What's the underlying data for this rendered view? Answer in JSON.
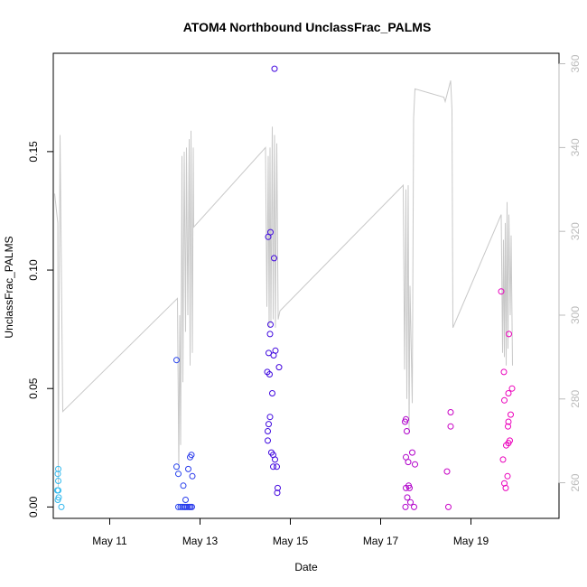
{
  "chart_data": {
    "type": "scatter",
    "title": "ATOM4 Northbound UnclassFrac_PALMS",
    "xlabel": "Date",
    "ylabel": "UnclassFrac_PALMS",
    "x_unit": "day of May",
    "xlim": [
      9.75,
      20.95
    ],
    "ylim": [
      -0.0048,
      0.1915
    ],
    "y2lim": [
      251.5,
      362.5
    ],
    "x_ticks": [
      11,
      13,
      15,
      17,
      19
    ],
    "x_tick_labels": [
      "May 11",
      "May 13",
      "May 15",
      "May 17",
      "May 19"
    ],
    "y_ticks": [
      0.0,
      0.05,
      0.1,
      0.15
    ],
    "y_tick_labels": [
      "0.00",
      "0.05",
      "0.10",
      "0.15"
    ],
    "y2_ticks": [
      260,
      280,
      300,
      320,
      340,
      360
    ],
    "y2_tick_labels": [
      "260",
      "280",
      "300",
      "320",
      "340",
      "360"
    ],
    "grid": false,
    "legend": "none",
    "colors": {
      "secondary_line": "#c8c8c8",
      "right_axis": "#bbbbbb",
      "frame": "#000000"
    },
    "series": [
      {
        "type": "scatter",
        "marker": "open-circle",
        "color_gradient": [
          "#33bbee",
          "#2244ee",
          "#4400dd",
          "#aa00cc",
          "#ee00bb"
        ],
        "points": [
          [
            9.86,
            0.016
          ],
          [
            9.85,
            0.014
          ],
          [
            9.86,
            0.011
          ],
          [
            9.84,
            0.007
          ],
          [
            9.86,
            0.007
          ],
          [
            9.87,
            0.004
          ],
          [
            9.85,
            0.003
          ],
          [
            9.93,
            0.0
          ],
          [
            12.48,
            0.062
          ],
          [
            12.48,
            0.017
          ],
          [
            12.81,
            0.022
          ],
          [
            12.78,
            0.021
          ],
          [
            12.52,
            0.014
          ],
          [
            12.74,
            0.016
          ],
          [
            12.83,
            0.013
          ],
          [
            12.63,
            0.009
          ],
          [
            12.68,
            0.003
          ],
          [
            12.52,
            0.0
          ],
          [
            12.57,
            0.0
          ],
          [
            12.61,
            0.0
          ],
          [
            12.65,
            0.0
          ],
          [
            12.68,
            0.0
          ],
          [
            12.72,
            0.0
          ],
          [
            12.76,
            0.0
          ],
          [
            12.79,
            0.0
          ],
          [
            12.82,
            0.0
          ],
          [
            14.65,
            0.185
          ],
          [
            14.56,
            0.116
          ],
          [
            14.51,
            0.114
          ],
          [
            14.64,
            0.105
          ],
          [
            14.56,
            0.077
          ],
          [
            14.55,
            0.073
          ],
          [
            14.52,
            0.065
          ],
          [
            14.67,
            0.066
          ],
          [
            14.63,
            0.064
          ],
          [
            14.75,
            0.059
          ],
          [
            14.49,
            0.057
          ],
          [
            14.54,
            0.056
          ],
          [
            14.6,
            0.048
          ],
          [
            14.55,
            0.038
          ],
          [
            14.52,
            0.035
          ],
          [
            14.5,
            0.032
          ],
          [
            14.5,
            0.028
          ],
          [
            14.58,
            0.023
          ],
          [
            14.62,
            0.022
          ],
          [
            14.66,
            0.02
          ],
          [
            14.62,
            0.017
          ],
          [
            14.7,
            0.017
          ],
          [
            14.72,
            0.008
          ],
          [
            14.71,
            0.006
          ],
          [
            17.56,
            0.037
          ],
          [
            17.54,
            0.036
          ],
          [
            17.58,
            0.032
          ],
          [
            17.7,
            0.023
          ],
          [
            17.56,
            0.021
          ],
          [
            17.61,
            0.019
          ],
          [
            17.76,
            0.018
          ],
          [
            17.62,
            0.009
          ],
          [
            17.56,
            0.008
          ],
          [
            17.64,
            0.008
          ],
          [
            17.59,
            0.004
          ],
          [
            17.66,
            0.002
          ],
          [
            17.55,
            0.0
          ],
          [
            17.74,
            0.0
          ],
          [
            18.55,
            0.04
          ],
          [
            18.55,
            0.034
          ],
          [
            18.47,
            0.015
          ],
          [
            18.5,
            0.0
          ],
          [
            19.67,
            0.091
          ],
          [
            19.84,
            0.073
          ],
          [
            19.73,
            0.057
          ],
          [
            19.91,
            0.05
          ],
          [
            19.83,
            0.048
          ],
          [
            19.74,
            0.045
          ],
          [
            19.88,
            0.039
          ],
          [
            19.83,
            0.036
          ],
          [
            19.82,
            0.034
          ],
          [
            19.86,
            0.028
          ],
          [
            19.83,
            0.027
          ],
          [
            19.78,
            0.026
          ],
          [
            19.71,
            0.02
          ],
          [
            19.81,
            0.013
          ],
          [
            19.74,
            0.01
          ],
          [
            19.77,
            0.008
          ]
        ]
      },
      {
        "name": "",
        "type": "line",
        "axis": "right",
        "points": [
          [
            9.78,
            329
          ],
          [
            9.85,
            322
          ],
          [
            9.86,
            259
          ],
          [
            9.9,
            343
          ],
          [
            9.96,
            277
          ],
          [
            12.5,
            304
          ],
          [
            12.53,
            263
          ],
          [
            12.55,
            300
          ],
          [
            12.57,
            269
          ],
          [
            12.6,
            338
          ],
          [
            12.62,
            284
          ],
          [
            12.65,
            339
          ],
          [
            12.68,
            296
          ],
          [
            12.7,
            340
          ],
          [
            12.73,
            300
          ],
          [
            12.76,
            342
          ],
          [
            12.78,
            288
          ],
          [
            12.8,
            344
          ],
          [
            12.83,
            291
          ],
          [
            12.85,
            340
          ],
          [
            12.86,
            321
          ],
          [
            14.45,
            340
          ],
          [
            14.48,
            302
          ],
          [
            14.51,
            338
          ],
          [
            14.53,
            297
          ],
          [
            14.55,
            340
          ],
          [
            14.57,
            298
          ],
          [
            14.6,
            345
          ],
          [
            14.62,
            299
          ],
          [
            14.65,
            343
          ],
          [
            14.67,
            297
          ],
          [
            14.7,
            341
          ],
          [
            14.73,
            299
          ],
          [
            14.77,
            301
          ],
          [
            17.5,
            331
          ],
          [
            17.53,
            287
          ],
          [
            17.56,
            330
          ],
          [
            17.58,
            280
          ],
          [
            17.61,
            331
          ],
          [
            17.63,
            272
          ],
          [
            17.65,
            307
          ],
          [
            17.7,
            279
          ],
          [
            17.73,
            347
          ],
          [
            17.76,
            354
          ],
          [
            18.4,
            352
          ],
          [
            18.43,
            351
          ],
          [
            18.55,
            356
          ],
          [
            18.58,
            349
          ],
          [
            18.6,
            297
          ],
          [
            19.67,
            324
          ],
          [
            19.7,
            291
          ],
          [
            19.72,
            318
          ],
          [
            19.74,
            290
          ],
          [
            19.76,
            322
          ],
          [
            19.78,
            288
          ],
          [
            19.8,
            327
          ],
          [
            19.82,
            292
          ],
          [
            19.84,
            324
          ],
          [
            19.87,
            300
          ],
          [
            19.89,
            319
          ],
          [
            19.92,
            288
          ]
        ]
      }
    ]
  }
}
